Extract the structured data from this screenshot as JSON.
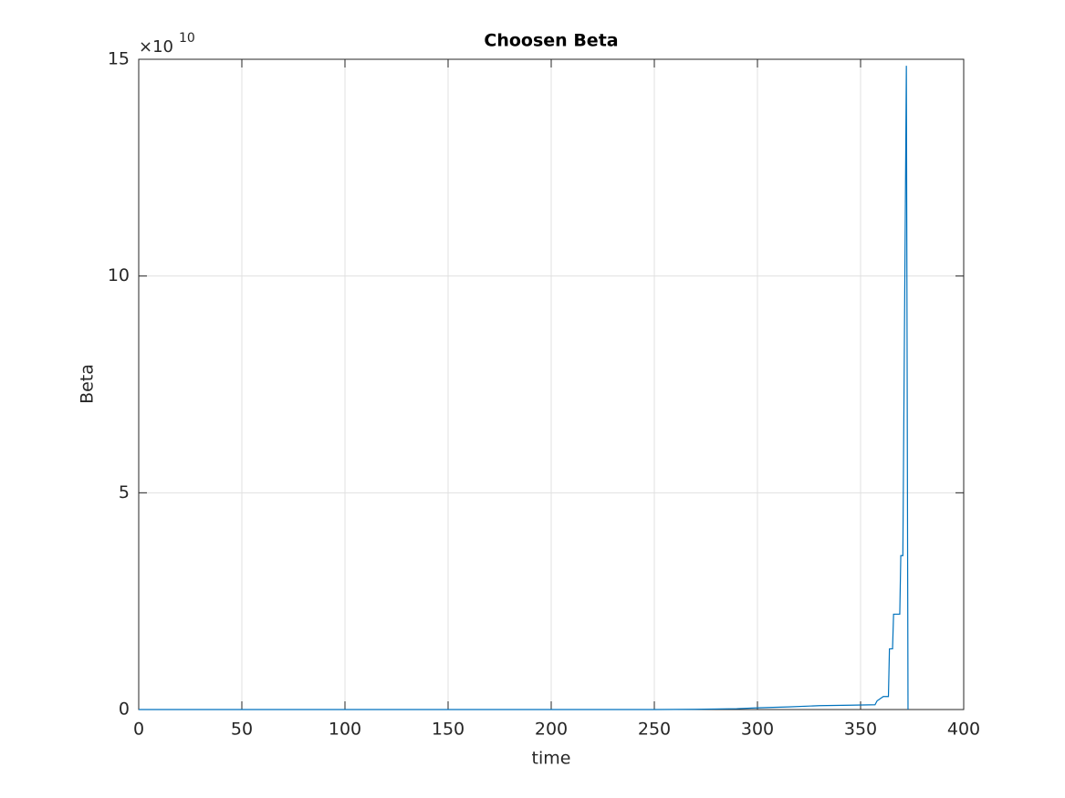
{
  "chart_data": {
    "type": "line",
    "title": "Choosen Beta",
    "xlabel": "time",
    "ylabel": "Beta",
    "y_multiplier": {
      "base": "×10",
      "exponent": "10"
    },
    "x": [
      0,
      250,
      270,
      290,
      300,
      315,
      330,
      345,
      357,
      358,
      361,
      363.5,
      364,
      365.5,
      366,
      369,
      369.5,
      370.5,
      372.2,
      373
    ],
    "series": [
      {
        "name": "Beta",
        "color": "#0072bd",
        "values": [
          0,
          0,
          0.005,
          0.02,
          0.04,
          0.06,
          0.09,
          0.1,
          0.11,
          0.2,
          0.3,
          0.3,
          1.4,
          1.4,
          2.2,
          2.2,
          3.55,
          3.55,
          14.85,
          0
        ]
      }
    ],
    "xlim": [
      0,
      400
    ],
    "xticks": [
      0,
      50,
      100,
      150,
      200,
      250,
      300,
      350,
      400
    ],
    "ylim": [
      0,
      15
    ],
    "yticks": [
      0,
      5,
      10,
      15
    ],
    "grid": true
  }
}
